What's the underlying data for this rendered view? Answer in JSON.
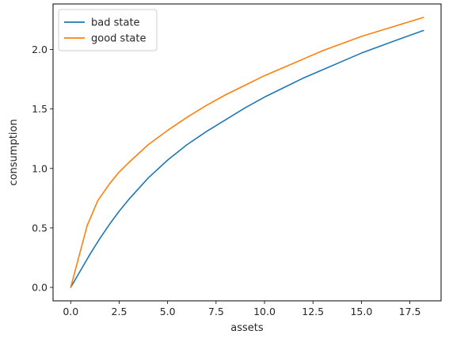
{
  "chart_data": {
    "type": "line",
    "xlabel": "assets",
    "ylabel": "consumption",
    "xlim": [
      -0.91,
      19.11
    ],
    "ylim": [
      -0.113,
      2.383
    ],
    "xticks": [
      0.0,
      2.5,
      5.0,
      7.5,
      10.0,
      12.5,
      15.0,
      17.5
    ],
    "xtick_labels": [
      "0.0",
      "2.5",
      "5.0",
      "7.5",
      "10.0",
      "12.5",
      "15.0",
      "17.5"
    ],
    "yticks": [
      0.0,
      0.5,
      1.0,
      1.5,
      2.0
    ],
    "ytick_labels": [
      "0.0",
      "0.5",
      "1.0",
      "1.5",
      "2.0"
    ],
    "grid": false,
    "legend_position": "top-left",
    "series": [
      {
        "name": "bad state",
        "color": "#1f77b4",
        "x": [
          0,
          0.5,
          1.0,
          1.5,
          2.0,
          2.5,
          3.0,
          4.0,
          5.0,
          6.0,
          7.0,
          8.0,
          9.0,
          10.0,
          11.0,
          12.0,
          13.0,
          14.0,
          15.0,
          16.0,
          17.0,
          18.2
        ],
        "y": [
          0.0,
          0.14,
          0.28,
          0.41,
          0.53,
          0.64,
          0.74,
          0.92,
          1.07,
          1.2,
          1.31,
          1.41,
          1.51,
          1.6,
          1.68,
          1.76,
          1.83,
          1.9,
          1.97,
          2.03,
          2.09,
          2.16
        ]
      },
      {
        "name": "good state",
        "color": "#ff7f0e",
        "x": [
          0,
          0.85,
          1.4,
          2.0,
          2.5,
          3.0,
          4.0,
          5.0,
          6.0,
          7.0,
          8.0,
          9.0,
          10.0,
          11.0,
          12.0,
          13.0,
          14.0,
          15.0,
          16.0,
          17.0,
          18.2
        ],
        "y": [
          0.0,
          0.52,
          0.73,
          0.87,
          0.97,
          1.05,
          1.2,
          1.32,
          1.43,
          1.53,
          1.62,
          1.7,
          1.78,
          1.85,
          1.92,
          1.99,
          2.05,
          2.11,
          2.16,
          2.21,
          2.27
        ]
      }
    ]
  }
}
